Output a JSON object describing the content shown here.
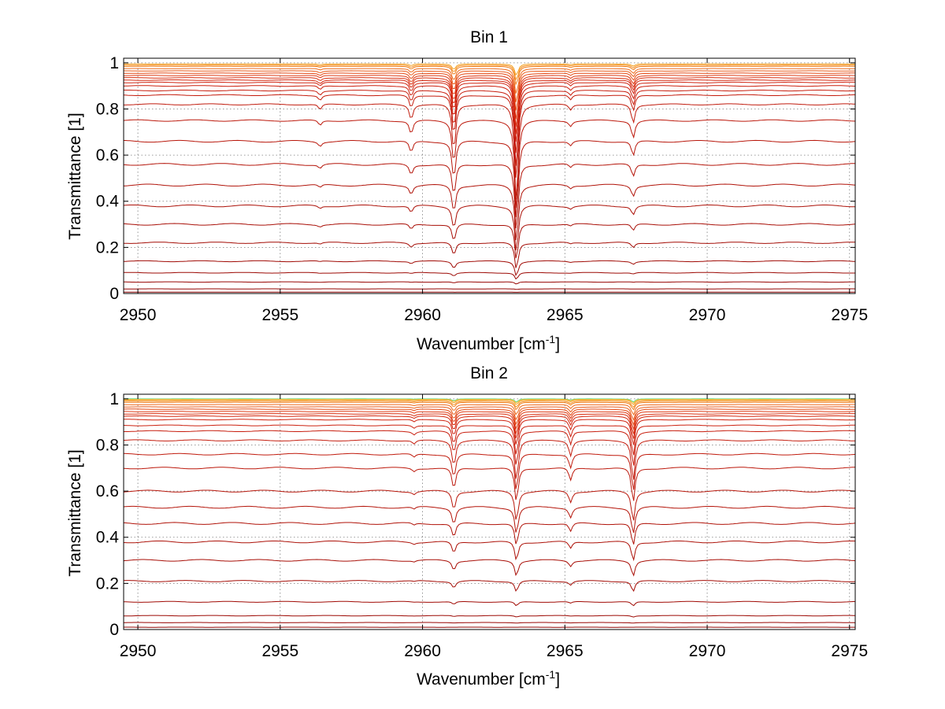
{
  "chart_data": [
    {
      "type": "line",
      "title": "Bin 1",
      "xlabel_text": "Wavenumber [cm",
      "xlabel_sup": "-1",
      "xlabel_end": "]",
      "ylabel": "Transmittance [1]",
      "xlim": [
        2949.5,
        2975.2
      ],
      "ylim": [
        0,
        1.02
      ],
      "xticks": [
        2950,
        2955,
        2960,
        2965,
        2970,
        2975
      ],
      "xtick_labels": [
        "2950",
        "2955",
        "2960",
        "2965",
        "2970",
        "2975"
      ],
      "yticks": [
        0,
        0.2,
        0.4,
        0.6,
        0.8,
        1
      ],
      "ytick_labels": [
        "0",
        "0.2",
        "0.4",
        "0.6",
        "0.8",
        "1"
      ],
      "grid": true,
      "peaks": [
        {
          "x": 2956.4,
          "rel_depth": 0.03
        },
        {
          "x": 2959.6,
          "rel_depth": 0.08
        },
        {
          "x": 2961.1,
          "rel_depth": 0.26
        },
        {
          "x": 2963.3,
          "rel_depth": 0.55
        },
        {
          "x": 2965.2,
          "rel_depth": 0.03
        },
        {
          "x": 2967.4,
          "rel_depth": 0.1
        }
      ],
      "series_levels": [
        0.995,
        0.99,
        0.985,
        0.975,
        0.965,
        0.955,
        0.945,
        0.935,
        0.925,
        0.915,
        0.9,
        0.88,
        0.86,
        0.82,
        0.75,
        0.66,
        0.56,
        0.47,
        0.38,
        0.3,
        0.22,
        0.14,
        0.09,
        0.05,
        0.02,
        0.006,
        0.0
      ],
      "series_colors": [
        "#f3a020",
        "#f49020",
        "#f08020",
        "#ee6a1c",
        "#e85a1a",
        "#e44a16",
        "#de3a14",
        "#d93012",
        "#d42810",
        "#cf220f",
        "#cc200f",
        "#c81e0e",
        "#c41c0d",
        "#c01a0c",
        "#bc180b",
        "#b8160a",
        "#b41409",
        "#b01208",
        "#ac1007",
        "#a80e06",
        "#a40c05",
        "#a00a04",
        "#9c0803",
        "#980603",
        "#940402",
        "#8c0202",
        "#800000"
      ]
    },
    {
      "type": "line",
      "title": "Bin 2",
      "xlabel_text": "Wavenumber [cm",
      "xlabel_sup": "-1",
      "xlabel_end": "]",
      "ylabel": "Transmittance [1]",
      "xlim": [
        2949.5,
        2975.2
      ],
      "ylim": [
        0,
        1.02
      ],
      "xticks": [
        2950,
        2955,
        2960,
        2965,
        2970,
        2975
      ],
      "xtick_labels": [
        "2950",
        "2955",
        "2960",
        "2965",
        "2970",
        "2975"
      ],
      "yticks": [
        0,
        0.2,
        0.4,
        0.6,
        0.8,
        1
      ],
      "ytick_labels": [
        "0",
        "0.2",
        "0.4",
        "0.6",
        "0.8",
        "1"
      ],
      "grid": true,
      "peaks": [
        {
          "x": 2959.7,
          "rel_depth": 0.02
        },
        {
          "x": 2961.1,
          "rel_depth": 0.14
        },
        {
          "x": 2963.3,
          "rel_depth": 0.22
        },
        {
          "x": 2965.2,
          "rel_depth": 0.08
        },
        {
          "x": 2967.4,
          "rel_depth": 0.22
        }
      ],
      "series_levels": [
        1.0,
        0.998,
        0.995,
        0.99,
        0.985,
        0.975,
        0.965,
        0.955,
        0.945,
        0.935,
        0.925,
        0.91,
        0.885,
        0.86,
        0.82,
        0.76,
        0.7,
        0.6,
        0.53,
        0.46,
        0.38,
        0.3,
        0.21,
        0.12,
        0.06,
        0.03,
        0.01,
        0.0
      ],
      "series_colors": [
        "#5fdc8a",
        "#e8c040",
        "#f3a020",
        "#f49020",
        "#f08020",
        "#ee6a1c",
        "#e85a1a",
        "#e44a16",
        "#de3a14",
        "#d93012",
        "#d42810",
        "#cf220f",
        "#cc200f",
        "#c81e0e",
        "#c41c0d",
        "#c01a0c",
        "#bc180b",
        "#b8160a",
        "#b41409",
        "#b01208",
        "#ac1007",
        "#a80e06",
        "#a40c05",
        "#a00a04",
        "#9c0803",
        "#980603",
        "#900302",
        "#800000"
      ]
    }
  ]
}
